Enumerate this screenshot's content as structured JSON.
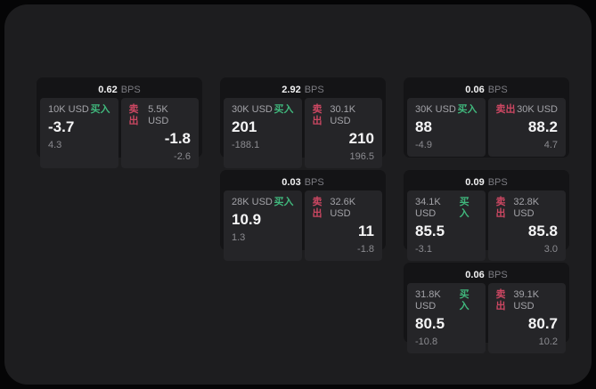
{
  "labels": {
    "buy": "买入",
    "sell": "卖出",
    "bps": "BPS"
  },
  "colors": {
    "buy": "#40b77c",
    "sell": "#cc4762",
    "page_bg": "#1d1d1f",
    "card_bg": "#141416",
    "panel_bg": "#252528"
  },
  "cards": [
    {
      "bps": "0.62",
      "col": 1,
      "row": 1,
      "buy": {
        "amount": "10K USD",
        "price": "-3.7",
        "delta": "4.3"
      },
      "sell": {
        "amount": "5.5K USD",
        "price": "-1.8",
        "delta": "-2.6"
      }
    },
    {
      "bps": "2.92",
      "col": 2,
      "row": 1,
      "buy": {
        "amount": "30K USD",
        "price": "201",
        "delta": "-188.1"
      },
      "sell": {
        "amount": "30.1K USD",
        "price": "210",
        "delta": "196.5"
      }
    },
    {
      "bps": "0.06",
      "col": 3,
      "row": 1,
      "buy": {
        "amount": "30K USD",
        "price": "88",
        "delta": "-4.9"
      },
      "sell": {
        "amount": "30K USD",
        "price": "88.2",
        "delta": "4.7"
      }
    },
    {
      "bps": "0.03",
      "col": 2,
      "row": 2,
      "buy": {
        "amount": "28K USD",
        "price": "10.9",
        "delta": "1.3"
      },
      "sell": {
        "amount": "32.6K USD",
        "price": "11",
        "delta": "-1.8"
      }
    },
    {
      "bps": "0.09",
      "col": 3,
      "row": 2,
      "buy": {
        "amount": "34.1K USD",
        "price": "85.5",
        "delta": "-3.1"
      },
      "sell": {
        "amount": "32.8K USD",
        "price": "85.8",
        "delta": "3.0"
      }
    },
    {
      "bps": "0.06",
      "col": 3,
      "row": 3,
      "buy": {
        "amount": "31.8K USD",
        "price": "80.5",
        "delta": "-10.8"
      },
      "sell": {
        "amount": "39.1K USD",
        "price": "80.7",
        "delta": "10.2"
      }
    }
  ]
}
